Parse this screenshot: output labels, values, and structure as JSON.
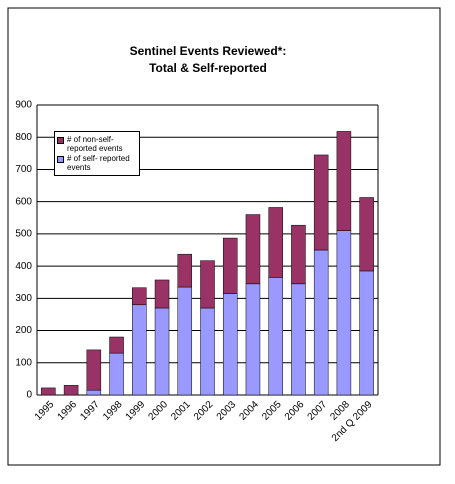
{
  "chart_data": {
    "type": "stacked-bar",
    "title": [
      "Sentinel Events Reviewed*:",
      "Total & Self-reported"
    ],
    "categories": [
      "1995",
      "1996",
      "1997",
      "1998",
      "1999",
      "2000",
      "2001",
      "2002",
      "2003",
      "2004",
      "2005",
      "2006",
      "2007",
      "2008",
      "2nd Q 2009"
    ],
    "series": [
      {
        "name": "# of self- reported events",
        "color": "#9999ff",
        "values": [
          0,
          0,
          15,
          130,
          280,
          270,
          335,
          270,
          315,
          345,
          365,
          345,
          450,
          510,
          385
        ]
      },
      {
        "name": "# of non-self-reported events",
        "color": "#993366",
        "values": [
          22,
          30,
          125,
          50,
          53,
          87,
          102,
          147,
          172,
          215,
          217,
          182,
          295,
          308,
          228
        ]
      }
    ],
    "ylim": [
      0,
      900
    ],
    "yticks": [
      0,
      100,
      200,
      300,
      400,
      500,
      600,
      700,
      800,
      900
    ],
    "grid": true
  }
}
